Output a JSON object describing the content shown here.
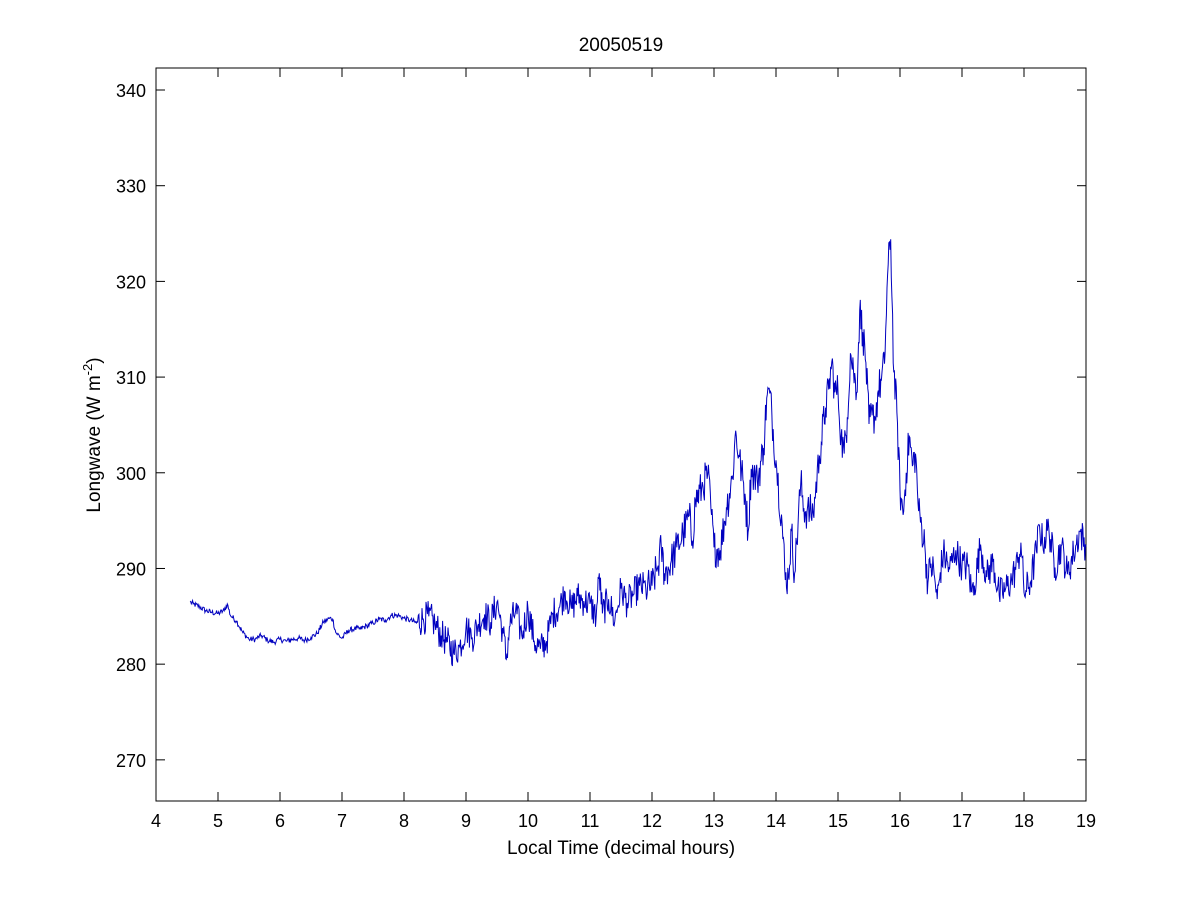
{
  "chart_data": {
    "type": "line",
    "title": "20050519",
    "xlabel": "Local Time (decimal hours)",
    "ylabel": {
      "base": "Longwave (W m",
      "superscript": "-2",
      "closing": ")"
    },
    "xlim": [
      4,
      19
    ],
    "ylim": [
      265.7,
      342.3
    ],
    "xticks": [
      4,
      5,
      6,
      7,
      8,
      9,
      10,
      11,
      12,
      13,
      14,
      15,
      16,
      17,
      18,
      19
    ],
    "yticks": [
      270,
      280,
      290,
      300,
      310,
      320,
      330,
      340
    ],
    "grid": false,
    "line_color": "#0000bf",
    "series": [
      {
        "x": [
          4.55,
          4.6,
          4.7,
          4.8,
          4.9,
          5.0,
          5.1,
          5.15,
          5.2,
          5.3,
          5.4,
          5.5,
          5.6,
          5.7,
          5.8,
          5.9,
          6.0,
          6.1,
          6.2,
          6.3,
          6.4,
          6.5,
          6.6,
          6.7,
          6.8,
          6.85,
          6.9,
          7.0,
          7.1,
          7.2,
          7.3,
          7.4,
          7.5,
          7.6,
          7.7,
          7.8,
          7.9,
          8.0,
          8.1,
          8.2,
          8.3,
          8.4,
          8.5,
          8.6,
          8.7,
          8.8,
          8.9,
          9.0,
          9.1,
          9.2,
          9.3,
          9.4,
          9.5,
          9.6,
          9.65,
          9.7,
          9.8,
          9.9,
          10.0,
          10.1,
          10.2,
          10.3,
          10.4,
          10.5,
          10.6,
          10.7,
          10.8,
          10.9,
          11.0,
          11.1,
          11.15,
          11.2,
          11.3,
          11.4,
          11.5,
          11.6,
          11.7,
          11.8,
          11.9,
          12.0,
          12.1,
          12.15,
          12.2,
          12.3,
          12.4,
          12.5,
          12.6,
          12.65,
          12.7,
          12.8,
          12.9,
          12.95,
          13.0,
          13.1,
          13.2,
          13.3,
          13.35,
          13.4,
          13.5,
          13.55,
          13.6,
          13.7,
          13.8,
          13.85,
          13.9,
          14.0,
          14.1,
          14.15,
          14.2,
          14.25,
          14.3,
          14.4,
          14.45,
          14.5,
          14.6,
          14.7,
          14.8,
          14.85,
          14.9,
          14.95,
          15.0,
          15.05,
          15.1,
          15.15,
          15.2,
          15.25,
          15.3,
          15.35,
          15.4,
          15.45,
          15.5,
          15.55,
          15.6,
          15.65,
          15.7,
          15.75,
          15.8,
          15.85,
          15.9,
          15.95,
          16.0,
          16.05,
          16.1,
          16.15,
          16.2,
          16.25,
          16.3,
          16.35,
          16.4,
          16.45,
          16.5,
          16.55,
          16.6,
          16.65,
          16.7,
          16.8,
          16.9,
          17.0,
          17.1,
          17.15,
          17.2,
          17.3,
          17.4,
          17.5,
          17.6,
          17.7,
          17.8,
          17.9,
          17.95,
          18.0,
          18.1,
          18.2,
          18.25,
          18.3,
          18.4,
          18.5,
          18.6,
          18.7,
          18.8,
          18.9,
          19.0
        ],
        "y": [
          286.5,
          286.3,
          286.0,
          285.6,
          285.4,
          285.3,
          285.6,
          286.3,
          285.1,
          284.5,
          283.3,
          282.6,
          282.6,
          283.0,
          282.5,
          282.3,
          282.6,
          282.4,
          282.6,
          282.7,
          282.5,
          282.8,
          283.2,
          284.4,
          284.8,
          284.7,
          283.3,
          282.7,
          283.5,
          283.7,
          283.7,
          284.0,
          284.3,
          284.7,
          284.6,
          285.1,
          285.1,
          284.8,
          284.6,
          284.3,
          284.7,
          285.0,
          284.2,
          283.0,
          282.3,
          281.2,
          281.8,
          283.8,
          282.8,
          284.2,
          285.2,
          284.4,
          286.5,
          283.2,
          280.5,
          283.9,
          285.6,
          283.0,
          285.8,
          282.4,
          281.6,
          282.4,
          285.3,
          285.9,
          287.5,
          285.8,
          287.1,
          286.6,
          286.3,
          285.0,
          289.5,
          285.3,
          286.8,
          284.5,
          287.9,
          286.4,
          287.3,
          288.2,
          287.9,
          288.2,
          290.3,
          292.2,
          289.5,
          290.5,
          292.2,
          293.6,
          295.5,
          292.9,
          297.1,
          298.3,
          299.9,
          296.3,
          292.2,
          291.9,
          296.3,
          299.6,
          304.4,
          301.8,
          297.8,
          293.8,
          300.4,
          299.1,
          302.6,
          307.8,
          308.3,
          301.3,
          294.6,
          288.8,
          289.2,
          293.9,
          289.5,
          299.0,
          296.3,
          295.9,
          295.8,
          301.8,
          306.8,
          308.7,
          311.6,
          308.4,
          308.5,
          303.8,
          302.0,
          305.8,
          312.5,
          310.7,
          308.4,
          317.0,
          314.7,
          311.5,
          305.1,
          306.0,
          305.8,
          308.6,
          309.7,
          311.4,
          320.7,
          324.4,
          310.5,
          306.3,
          298.2,
          295.6,
          300.0,
          303.8,
          300.7,
          302.0,
          296.0,
          294.4,
          292.4,
          288.5,
          290.5,
          289.4,
          286.8,
          289.6,
          291.6,
          289.9,
          291.9,
          290.3,
          290.2,
          287.6,
          288.2,
          292.5,
          289.1,
          290.7,
          287.2,
          287.8,
          288.8,
          290.6,
          292.7,
          287.5,
          288.5,
          291.8,
          294.5,
          292.7,
          294.2,
          290.1,
          292.4,
          289.4,
          291.6,
          293.9,
          292.3
        ]
      }
    ]
  }
}
